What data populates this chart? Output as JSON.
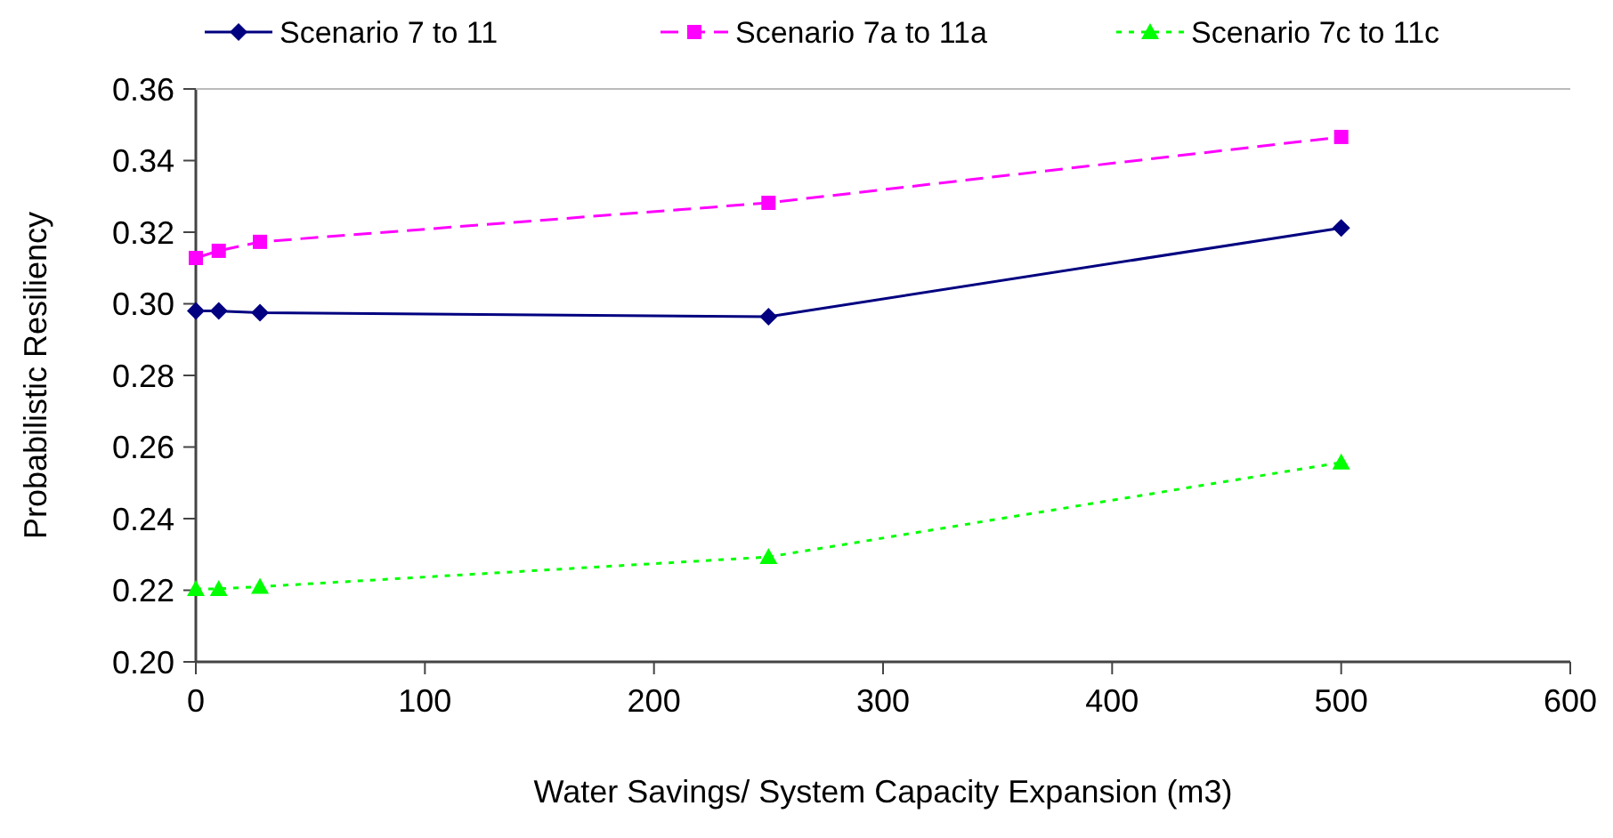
{
  "chart_data": {
    "type": "line",
    "xlabel": "Water Savings/ System Capacity Expansion (m3)",
    "ylabel": "Probabilistic Resiliency",
    "x": [
      0,
      10,
      28,
      250,
      500
    ],
    "series": [
      {
        "name": "Scenario 7 to 11",
        "color": "#000080",
        "values": [
          0.298,
          0.298,
          0.2975,
          0.2964,
          0.3212
        ],
        "marker": "diamond",
        "line_style": "solid"
      },
      {
        "name": "Scenario 7a to 11a",
        "color": "#ff00ff",
        "values": [
          0.3128,
          0.3148,
          0.3173,
          0.3282,
          0.3466
        ],
        "marker": "square",
        "line_style": "dashed"
      },
      {
        "name": "Scenario 7c to 11c",
        "color": "#00ff00",
        "values": [
          0.2204,
          0.2204,
          0.221,
          0.2293,
          0.2557
        ],
        "marker": "triangle",
        "line_style": "dotted"
      }
    ],
    "xlim": [
      0,
      600
    ],
    "xticks": [
      0,
      100,
      200,
      300,
      400,
      500,
      600
    ],
    "ylim": [
      0.2,
      0.36
    ],
    "yticks": [
      {
        "value": 0.2,
        "label": "0.20"
      },
      {
        "value": 0.22,
        "label": "0.22"
      },
      {
        "value": 0.24,
        "label": "0.24"
      },
      {
        "value": 0.26,
        "label": "0.26"
      },
      {
        "value": 0.28,
        "label": "0.28"
      },
      {
        "value": 0.3,
        "label": "0.30"
      },
      {
        "value": 0.32,
        "label": "0.32"
      },
      {
        "value": 0.34,
        "label": "0.34"
      },
      {
        "value": 0.36,
        "label": "0.36"
      }
    ],
    "grid": false,
    "legend": "top"
  }
}
